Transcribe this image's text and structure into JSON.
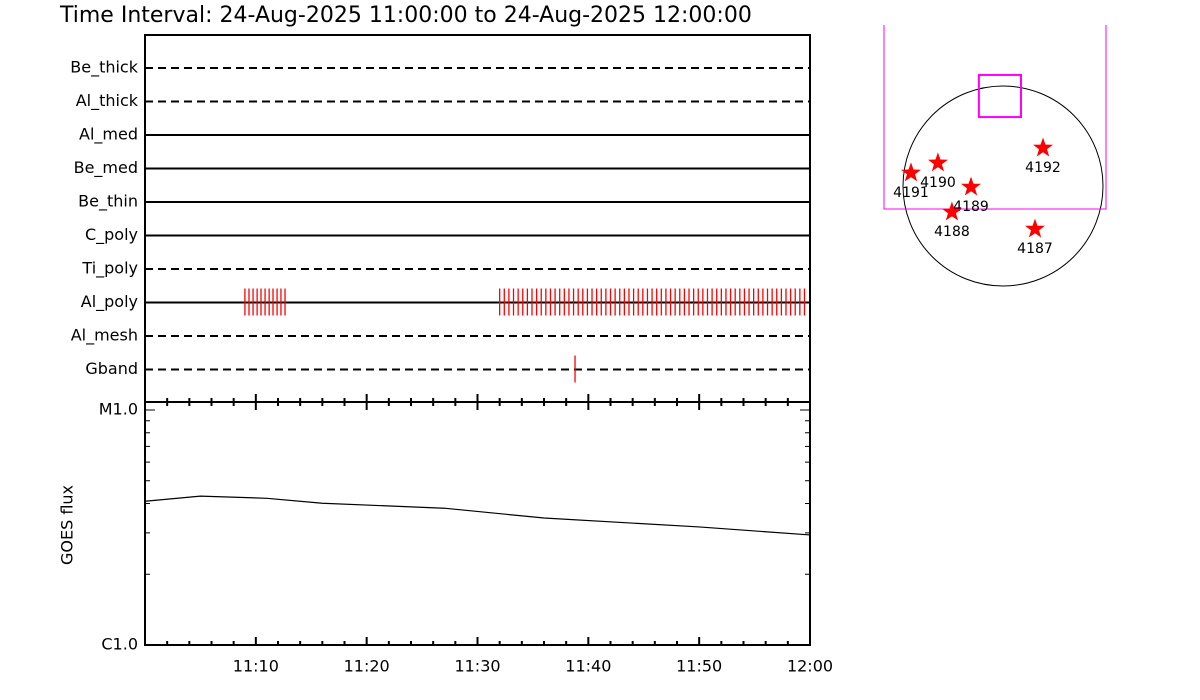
{
  "title": "Time Interval: 24-Aug-2025 11:00:00 to 24-Aug-2025 12:00:00",
  "chart_data": [
    {
      "type": "timeline",
      "xlim": [
        "11:00",
        "12:00"
      ],
      "color": "#ff0000",
      "rows": [
        {
          "name": "Be_thick",
          "style": "dashed",
          "times": []
        },
        {
          "name": "Al_thick",
          "style": "dashed",
          "times": []
        },
        {
          "name": "Al_med",
          "style": "solid",
          "times": []
        },
        {
          "name": "Be_med",
          "style": "solid",
          "times": []
        },
        {
          "name": "Be_thin",
          "style": "solid",
          "times": []
        },
        {
          "name": "C_poly",
          "style": "solid",
          "times": []
        },
        {
          "name": "Ti_poly",
          "style": "dashed",
          "times": []
        },
        {
          "name": "Al_poly",
          "style": "solid",
          "times": [
            "11:09:01",
            "11:09:23",
            "11:09:45",
            "11:10:07",
            "11:10:28",
            "11:10:50",
            "11:11:12",
            "11:11:33",
            "11:11:55",
            "11:12:16",
            "11:12:38",
            "11:32:00",
            "11:32:25",
            "11:32:50",
            "11:33:15",
            "11:33:40",
            "11:34:05",
            "11:34:30",
            "11:34:55",
            "11:35:20",
            "11:35:45",
            "11:36:10",
            "11:36:35",
            "11:37:00",
            "11:37:25",
            "11:37:50",
            "11:38:15",
            "11:38:40",
            "11:39:05",
            "11:39:30",
            "11:39:55",
            "11:40:20",
            "11:40:45",
            "11:41:10",
            "11:41:35",
            "11:42:00",
            "11:42:25",
            "11:42:50",
            "11:43:15",
            "11:43:40",
            "11:44:05",
            "11:44:30",
            "11:44:55",
            "11:45:20",
            "11:45:45",
            "11:46:10",
            "11:46:35",
            "11:47:00",
            "11:47:25",
            "11:47:50",
            "11:48:15",
            "11:48:40",
            "11:49:05",
            "11:49:30",
            "11:49:55",
            "11:50:20",
            "11:50:45",
            "11:51:10",
            "11:51:35",
            "11:52:00",
            "11:52:25",
            "11:52:50",
            "11:53:15",
            "11:53:40",
            "11:54:05",
            "11:54:30",
            "11:54:55",
            "11:55:20",
            "11:55:45",
            "11:56:10",
            "11:56:35",
            "11:57:00",
            "11:57:25",
            "11:57:50",
            "11:58:15",
            "11:58:40",
            "11:59:05",
            "11:59:30"
          ]
        },
        {
          "name": "Al_mesh",
          "style": "dashed",
          "times": []
        },
        {
          "name": "Gband",
          "style": "dashed",
          "times": [
            "11:38:48"
          ]
        }
      ]
    },
    {
      "type": "line",
      "ylabel": "GOES flux",
      "log_y": true,
      "color": "#000000",
      "xlim": [
        "11:00",
        "12:00"
      ],
      "xticks": [
        "11:10",
        "11:20",
        "11:30",
        "11:40",
        "11:50",
        "12:00"
      ],
      "minor_xticks": [
        "11:02",
        "11:04",
        "11:06",
        "11:08",
        "11:12",
        "11:14",
        "11:16",
        "11:18",
        "11:22",
        "11:24",
        "11:26",
        "11:28",
        "11:32",
        "11:34",
        "11:36",
        "11:38",
        "11:42",
        "11:44",
        "11:46",
        "11:48",
        "11:52",
        "11:54",
        "11:56",
        "11:58"
      ],
      "ylim": [
        1e-06,
        1e-05
      ],
      "yticks": [
        {
          "value": 1e-06,
          "label": "C1.0"
        },
        {
          "value": 1e-05,
          "label": "M1.0"
        }
      ],
      "minor_yticks": [
        2e-06,
        3e-06,
        4e-06,
        5e-06,
        6e-06,
        7e-06,
        8e-06,
        9e-06
      ],
      "x": [
        "11:00",
        "11:05",
        "11:11",
        "11:16",
        "11:27",
        "11:36",
        "11:50",
        "12:00"
      ],
      "values": [
        4.09e-06,
        4.3e-06,
        4.21e-06,
        4.01e-06,
        3.82e-06,
        3.47e-06,
        3.18e-06,
        2.94e-06
      ]
    },
    {
      "type": "map",
      "solar_radius": 950,
      "color": "#ff0000",
      "fov_color": "#ff00ff",
      "fov": {
        "x": -76,
        "y": 656,
        "width": 2109,
        "height": 1748
      },
      "subfield": {
        "x": -29,
        "y": 855,
        "width": 400,
        "height": 400
      },
      "regions": [
        {
          "label": "4191",
          "x": -874,
          "y": 124
        },
        {
          "label": "4190",
          "x": -618,
          "y": 219
        },
        {
          "label": "4189",
          "x": -304,
          "y": -10
        },
        {
          "label": "4188",
          "x": -485,
          "y": -247
        },
        {
          "label": "4192",
          "x": 380,
          "y": 361
        },
        {
          "label": "4187",
          "x": 304,
          "y": -409
        }
      ]
    }
  ]
}
